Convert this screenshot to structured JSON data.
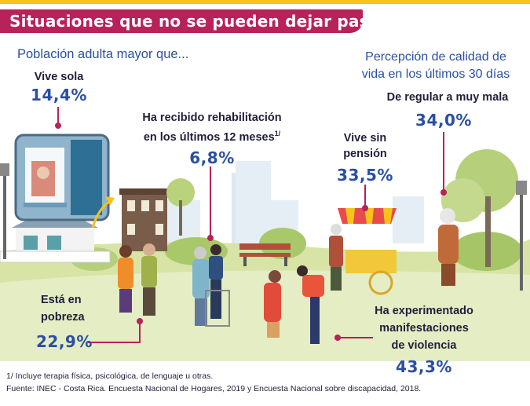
{
  "title": "Situaciones que no se pueden dejar pasar",
  "subtitle": "Población adulta mayor que...",
  "stats": {
    "vive_sola": {
      "label": "Vive sola",
      "value": "14,4%"
    },
    "rehabilitacion": {
      "label_line1": "Ha recibido rehabilitación",
      "label_line2": "en los últimos 12 meses",
      "superscript": "1/",
      "value": "6,8%"
    },
    "sin_pension": {
      "label_line1": "Vive sin",
      "label_line2": "pensión",
      "value": "33,5%"
    },
    "percepcion": {
      "heading_line1": "Percepción de calidad de",
      "heading_line2": "vida en los últimos 30 días",
      "label": "De regular a muy mala",
      "value": "34,0%"
    },
    "pobreza": {
      "label_line1": "Está en",
      "label_line2": "pobreza",
      "value": "22,9%"
    },
    "violencia": {
      "label_line1": "Ha experimentado",
      "label_line2": "manifestaciones",
      "label_line3": "de violencia",
      "value": "43,3%"
    }
  },
  "footnotes": {
    "note1": "1/ Incluye terapia física, psicológica, de lenguaje u otras.",
    "source": "Fuente: INEC - Costa Rica. Encuesta Nacional de Hogares, 2019 y Encuesta Nacional sobre discapacidad, 2018."
  },
  "colors": {
    "accent": "#b7225a",
    "value_blue": "#2a4fa3",
    "yellow": "#f7c21a",
    "grass": "#c5d98a",
    "sky_building": "#dde7f0"
  }
}
